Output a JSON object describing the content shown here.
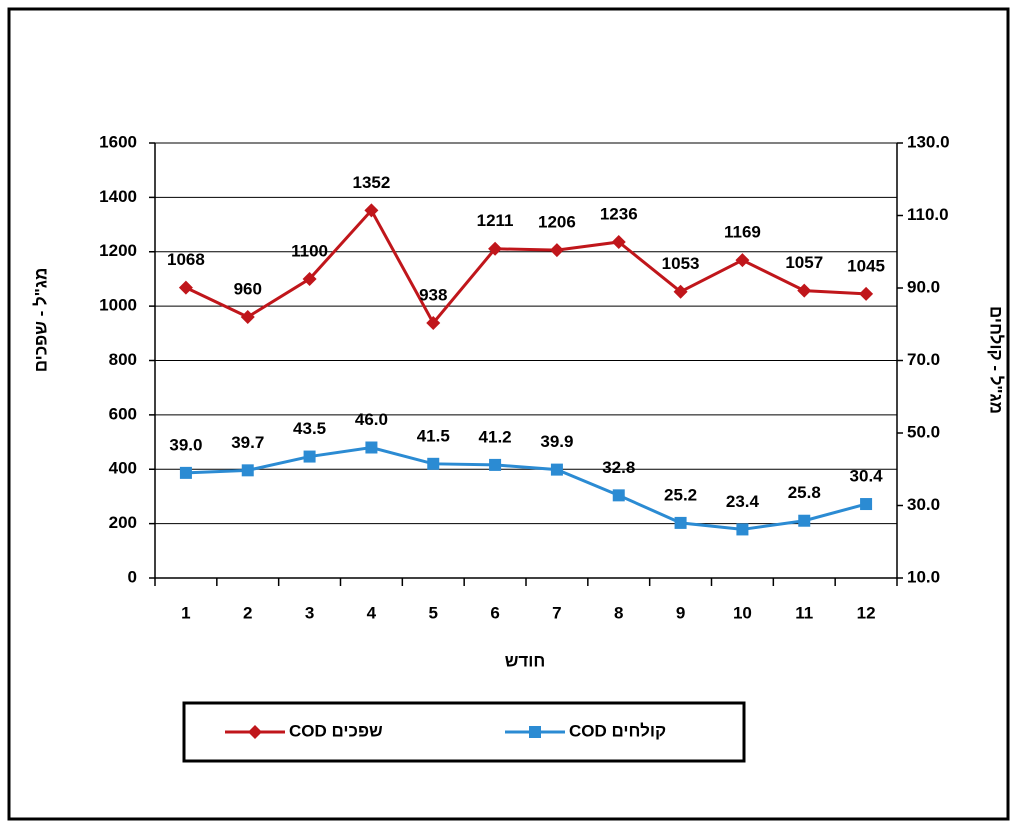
{
  "chart_data": {
    "type": "line",
    "x_label": "חודש",
    "y_label": "מג\"ל - שפכים",
    "y2_label": "מג\"ל - קולחים",
    "categories": [
      "1",
      "2",
      "3",
      "4",
      "5",
      "6",
      "7",
      "8",
      "9",
      "10",
      "11",
      "12"
    ],
    "ylim": [
      0,
      1600
    ],
    "yticks": [
      0,
      200,
      400,
      600,
      800,
      1000,
      1200,
      1400,
      1600
    ],
    "y2lim": [
      10,
      130
    ],
    "y2ticks": [
      {
        "value": 10,
        "label": "10.0"
      },
      {
        "value": 30,
        "label": "30.0"
      },
      {
        "value": 50,
        "label": "50.0"
      },
      {
        "value": 70,
        "label": "70.0"
      },
      {
        "value": 90,
        "label": "90.0"
      },
      {
        "value": 110,
        "label": "110.0"
      },
      {
        "value": 130,
        "label": "130.0"
      }
    ],
    "grid": true,
    "legend": "bottom",
    "series": [
      {
        "name": "COD שפכים",
        "color": "#c0161b",
        "marker": "diamond",
        "axis": "y",
        "values": [
          1068,
          960,
          1100,
          1352,
          938,
          1211,
          1206,
          1236,
          1053,
          1169,
          1057,
          1045
        ]
      },
      {
        "name": "COD קולחים",
        "color": "#2b8bd3",
        "marker": "square",
        "axis": "y2",
        "values": [
          39.0,
          39.7,
          43.5,
          46.0,
          41.5,
          41.2,
          39.9,
          32.8,
          25.2,
          23.4,
          25.8,
          30.4
        ],
        "value_labels": [
          "39.0",
          "39.7",
          "43.5",
          "46.0",
          "41.5",
          "41.2",
          "39.9",
          "32.8",
          "25.2",
          "23.4",
          "25.8",
          "30.4"
        ]
      }
    ]
  }
}
